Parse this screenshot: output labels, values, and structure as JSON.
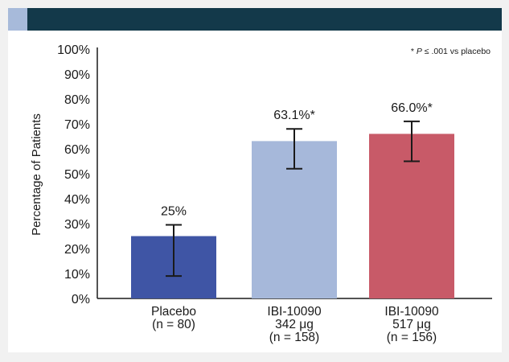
{
  "chart_data": {
    "type": "bar",
    "title": "",
    "xlabel": "",
    "ylabel": "Percentage of Patients",
    "ylim": [
      0,
      100
    ],
    "yticks": [
      "0%",
      "10%",
      "20%",
      "30%",
      "40%",
      "50%",
      "60%",
      "70%",
      "80%",
      "90%",
      "100%"
    ],
    "footnote": {
      "prefix": "* ",
      "italic": "P",
      "suffix": " ≤ .001 vs placebo"
    },
    "categories": [
      {
        "lines": [
          "Placebo",
          "(n = 80)"
        ]
      },
      {
        "lines": [
          "IBI-10090",
          "342 μg",
          "(n = 158)"
        ]
      },
      {
        "lines": [
          "IBI-10090",
          "517 μg",
          "(n = 156)"
        ]
      }
    ],
    "values": [
      25,
      63.1,
      66.0
    ],
    "value_labels": [
      "25%",
      "63.1%*",
      "66.0%*"
    ],
    "error_bars": [
      {
        "low": 9,
        "high": 29.5
      },
      {
        "low": 52,
        "high": 68
      },
      {
        "low": 55,
        "high": 71
      }
    ],
    "colors": [
      "#3f55a5",
      "#a6b8da",
      "#c85a68"
    ],
    "grid": false
  },
  "colors": {
    "header": "#13394a",
    "header_accent": "#a7bada",
    "panel": "#f1f1f1"
  }
}
